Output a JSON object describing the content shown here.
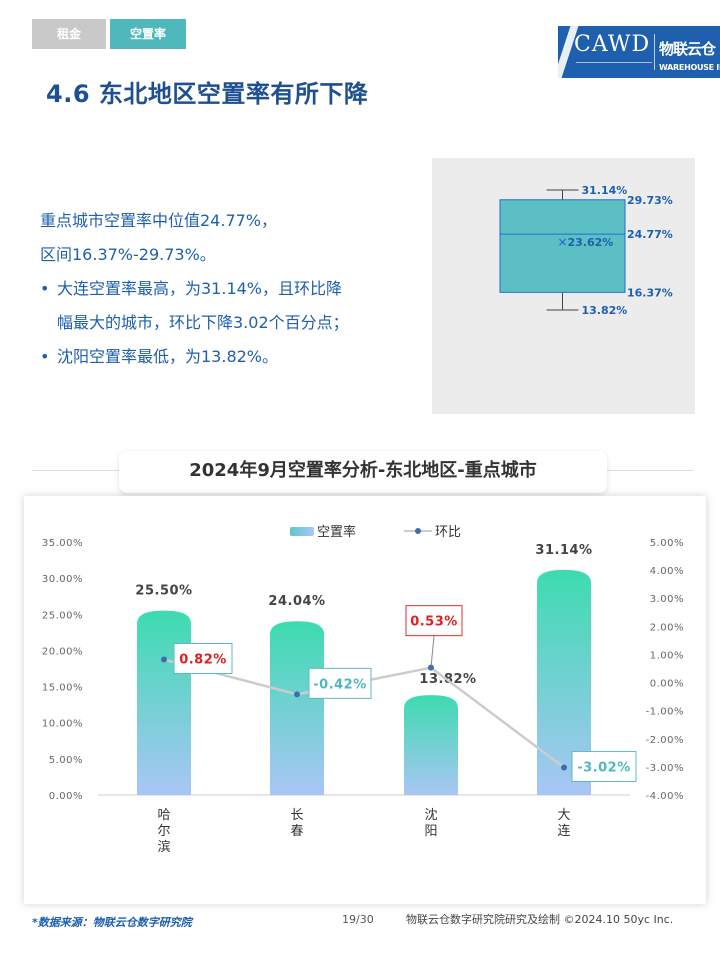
{
  "tabs": [
    {
      "label": "租金"
    },
    {
      "label": "空置率"
    }
  ],
  "logo": {
    "mark": "CAWD",
    "cn": "物联云仓",
    "en": "WAREHOUSE IN CLOUD"
  },
  "title": "4.6 东北地区空置率有所下降",
  "summary": {
    "line1": "重点城市空置率中位值24.77%，",
    "line2": "区间16.37%-29.73%。",
    "bullet1_a": "大连空置率最高，为31.14%，且环比降",
    "bullet1_b": "幅最大的城市，环比下降3.02个百分点；",
    "bullet2": "沈阳空置率最低，为13.82%。"
  },
  "chart_data": [
    {
      "type": "box",
      "stats": {
        "max": 31.14,
        "q3": 29.73,
        "median": 24.77,
        "mean": 23.62,
        "q1": 16.37,
        "min": 13.82
      },
      "labels": {
        "max": "31.14%",
        "q3": "29.73%",
        "median": "24.77%",
        "mean": "23.62%",
        "q1": "16.37%",
        "min": "13.82%"
      },
      "colors": {
        "box": "#5bbfc4",
        "stroke": "#1e6fd0",
        "text": "#1e5fae"
      }
    },
    {
      "type": "bar+line",
      "title": "2024年9月空置率分析-东北地区-重点城市",
      "categories": [
        "哈尔滨",
        "长春",
        "沈阳",
        "大连"
      ],
      "legend": {
        "bar": "空置率",
        "line": "环比"
      },
      "series": [
        {
          "name": "空置率",
          "type": "bar",
          "axis": "left",
          "values": [
            25.5,
            24.04,
            13.82,
            31.14
          ],
          "labels": [
            "25.50%",
            "24.04%",
            "13.82%",
            "31.14%"
          ]
        },
        {
          "name": "环比",
          "type": "line",
          "axis": "right",
          "values": [
            0.82,
            -0.42,
            0.53,
            -3.02
          ],
          "labels": [
            "0.82%",
            "-0.42%",
            "0.53%",
            "-3.02%"
          ]
        }
      ],
      "left_axis": {
        "min": 0,
        "max": 35,
        "step": 5,
        "ticks": [
          "0.00%",
          "5.00%",
          "10.00%",
          "15.00%",
          "20.00%",
          "25.00%",
          "30.00%",
          "35.00%"
        ]
      },
      "right_axis": {
        "min": -4,
        "max": 5,
        "step": 1,
        "ticks": [
          "-4.00%",
          "-3.00%",
          "-2.00%",
          "-1.00%",
          "0.00%",
          "1.00%",
          "2.00%",
          "3.00%",
          "4.00%",
          "5.00%"
        ]
      },
      "colors": {
        "bar_top": "#3ddbb0",
        "bar_bottom": "#a9c6f5",
        "line": "#cccccc",
        "point": "#3d6fb0",
        "positive": "#e02020",
        "negative": "#4fb8bd"
      }
    }
  ],
  "footer": {
    "source": "*数据来源：物联云仓数字研究院",
    "page": "19/30",
    "credit": "物联云仓数字研究院研究及绘制   ©2024.10 50yc Inc."
  }
}
